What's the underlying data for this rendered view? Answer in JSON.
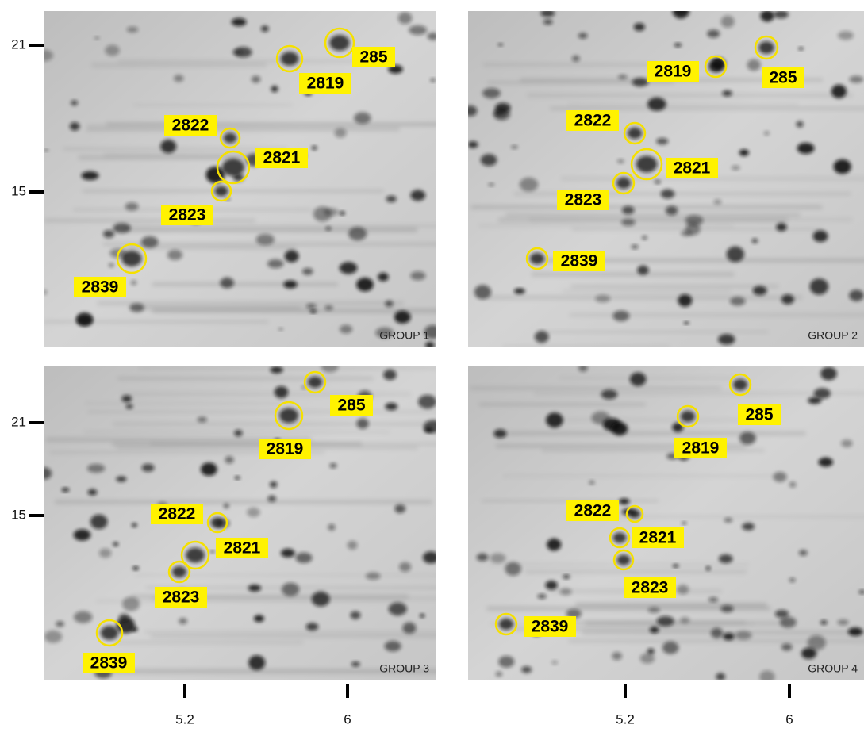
{
  "panels": [
    {
      "label": "GROUP 1",
      "spots": [
        "285",
        "2819",
        "2822",
        "2821",
        "2823",
        "2839"
      ]
    },
    {
      "label": "GROUP 2",
      "spots": [
        "285",
        "2819",
        "2822",
        "2821",
        "2823",
        "2839"
      ]
    },
    {
      "label": "GROUP 3",
      "spots": [
        "285",
        "2819",
        "2822",
        "2821",
        "2823",
        "2839"
      ]
    },
    {
      "label": "GROUP 4",
      "spots": [
        "285",
        "2819",
        "2822",
        "2821",
        "2823",
        "2839"
      ]
    }
  ],
  "y_axis_top": [
    "21",
    "15"
  ],
  "y_axis_bottom": [
    "21",
    "15"
  ],
  "x_axis_left": [
    "5.2",
    "6"
  ],
  "x_axis_right": [
    "5.2",
    "6"
  ]
}
